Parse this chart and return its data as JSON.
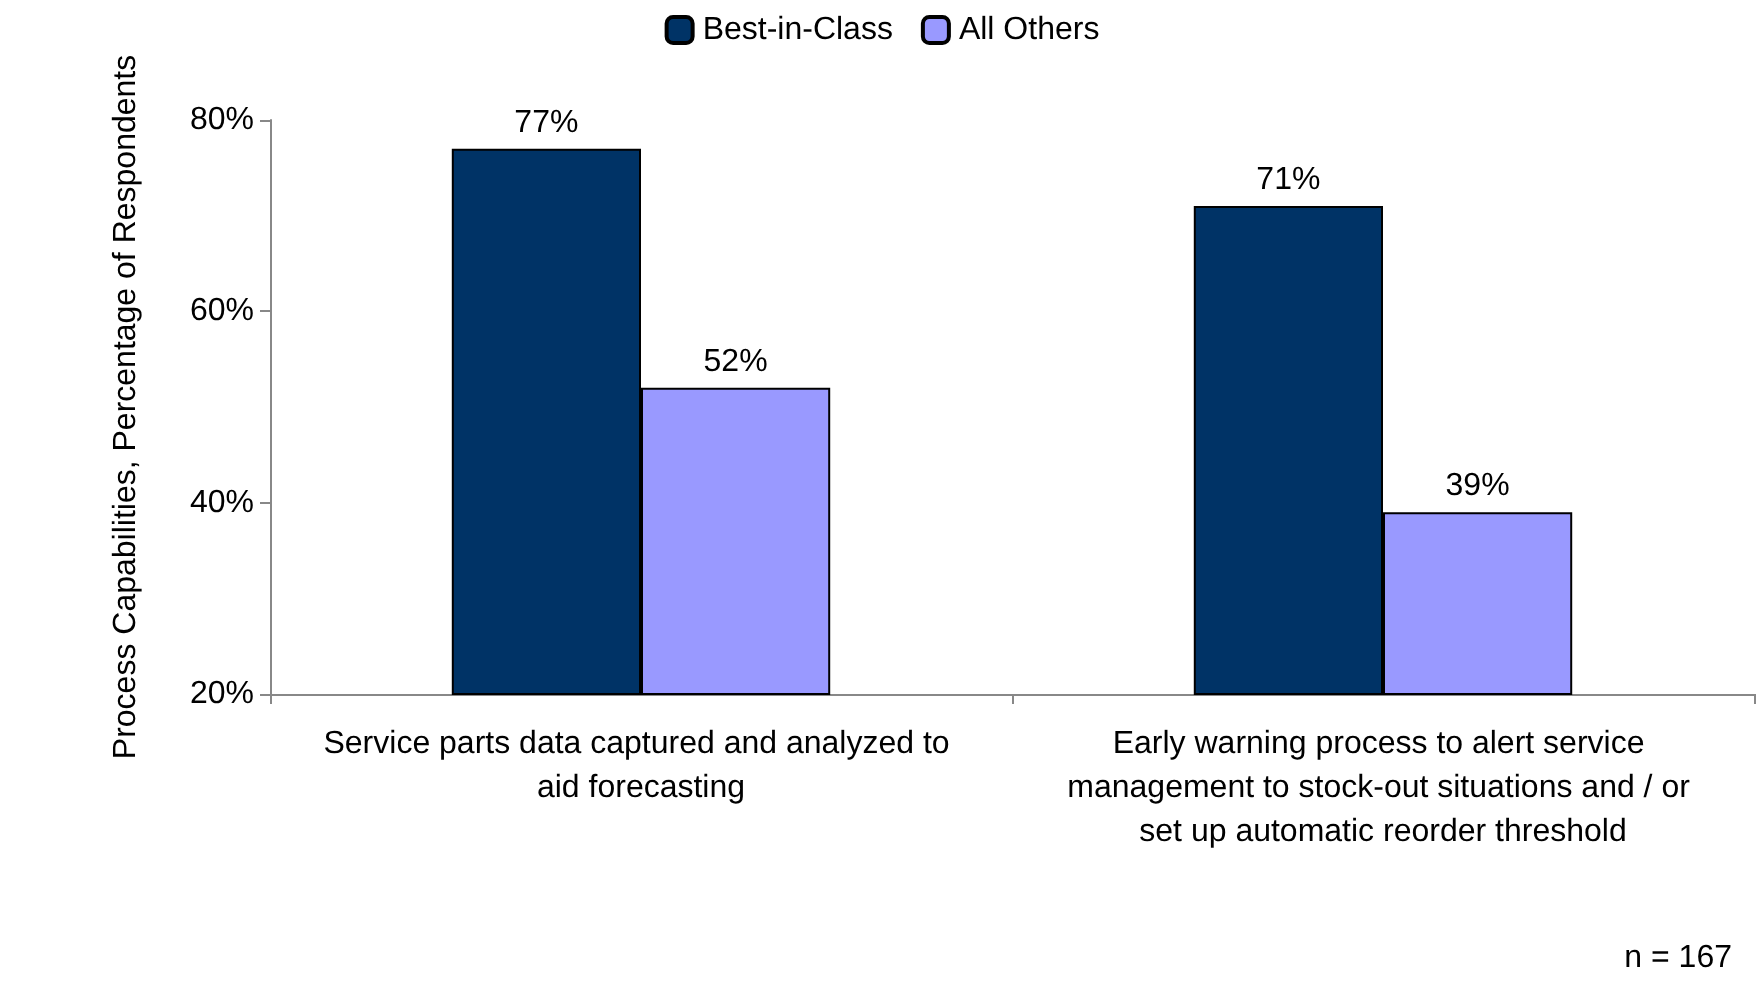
{
  "chart_data": {
    "type": "bar",
    "ylabel": "Process Capabilities, Percentage of Respondents",
    "categories": [
      "Service parts data captured and analyzed to aid forecasting",
      "Early warning process to alert service management to stock-out situations and / or set up automatic reorder threshold"
    ],
    "series": [
      {
        "name": "Best-in-Class",
        "color": "#003366",
        "values": [
          77,
          71
        ],
        "value_labels": [
          "77%",
          "71%"
        ]
      },
      {
        "name": "All Others",
        "color": "#9999ff",
        "values": [
          52,
          39
        ],
        "value_labels": [
          "52%",
          "39%"
        ]
      }
    ],
    "ylim": [
      20,
      80
    ],
    "yticks": [
      {
        "value": 20,
        "label": "20%"
      },
      {
        "value": 40,
        "label": "40%"
      },
      {
        "value": 60,
        "label": "60%"
      },
      {
        "value": 80,
        "label": "80%"
      }
    ],
    "grid": false,
    "legend": "top",
    "annotations": [
      "n = 167"
    ]
  }
}
